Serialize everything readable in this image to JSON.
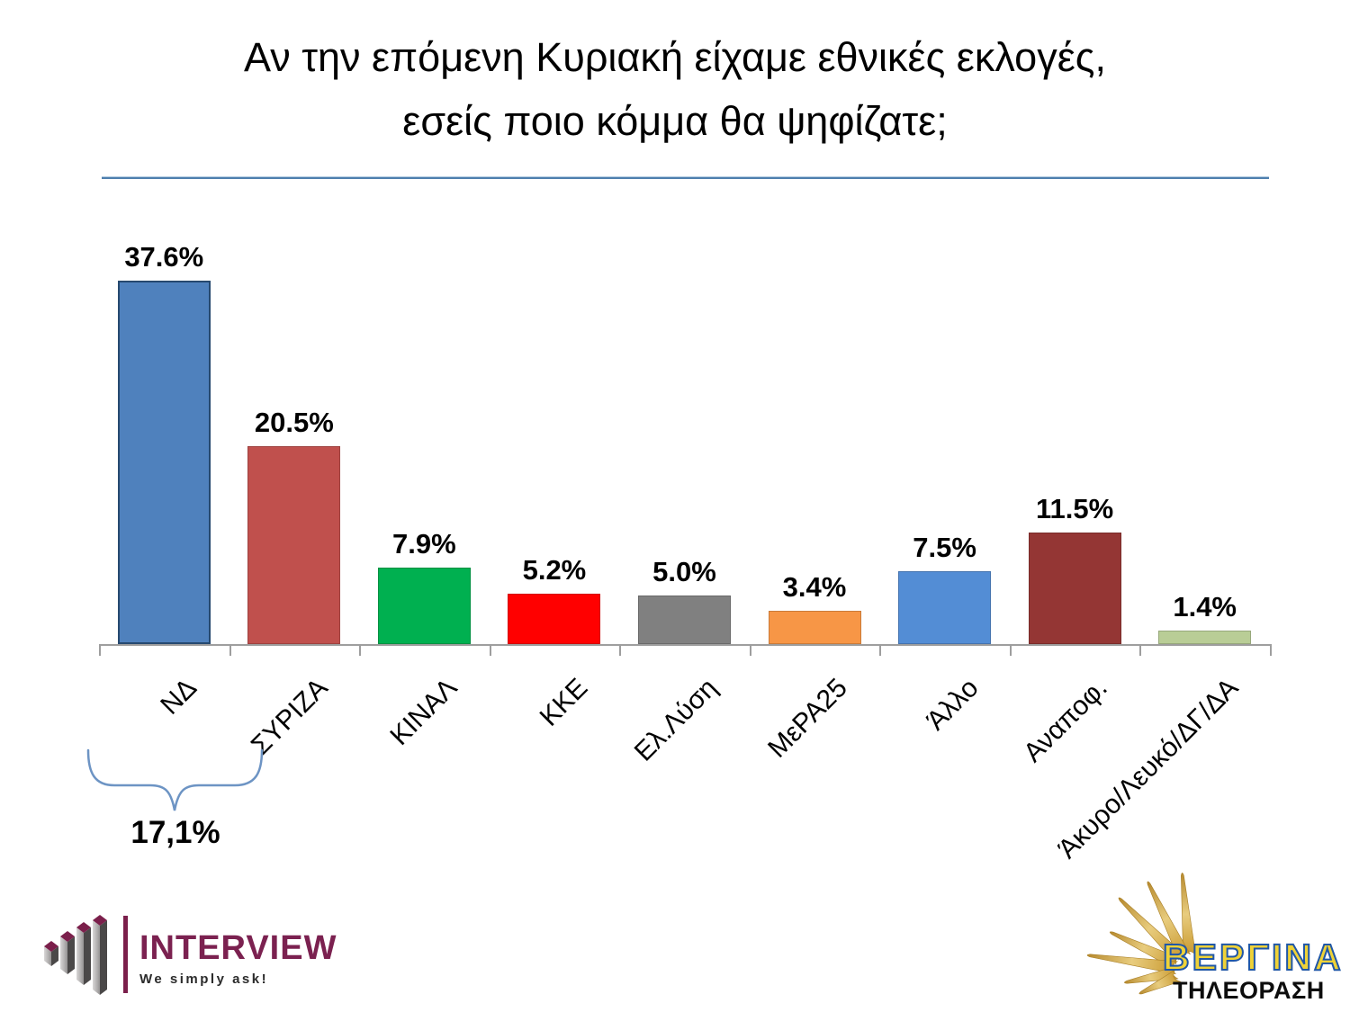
{
  "title": "Αν την επόμενη Κυριακή είχαμε εθνικές εκλογές, εσείς ποιο κόμμα θα ψηφίζατε;",
  "chart_data": {
    "type": "bar",
    "categories": [
      "ΝΔ",
      "ΣΥΡΙΖΑ",
      "ΚΙΝΑΛ",
      "ΚΚΕ",
      "Ελ.Λύση",
      "ΜεΡΑ25",
      "Άλλο",
      "Αναποφ.",
      "Άκυρο/Λευκό/ΔΓ/ΔΑ"
    ],
    "values": [
      37.6,
      20.5,
      7.9,
      5.2,
      5.0,
      3.4,
      7.5,
      11.5,
      1.4
    ],
    "value_labels": [
      "37.6%",
      "20.5%",
      "7.9%",
      "5.2%",
      "5.0%",
      "3.4%",
      "7.5%",
      "11.5%",
      "1.4%"
    ],
    "bar_colors": [
      "#4F81BD",
      "#C0504D",
      "#00B050",
      "#FF0000",
      "#808080",
      "#F79646",
      "#538DD5",
      "#943634",
      "#B9CD96"
    ],
    "bar_border_colors": [
      "#26496F",
      "rgba(0,0,0,0.18)",
      "rgba(0,0,0,0.18)",
      "rgba(0,0,0,0.18)",
      "rgba(0,0,0,0.18)",
      "rgba(0,0,0,0.18)",
      "rgba(0,0,0,0.18)",
      "rgba(0,0,0,0.18)",
      "rgba(0,0,0,0.18)"
    ],
    "ylim": [
      0,
      40
    ],
    "grid": false,
    "legend": "none",
    "annotation": {
      "text": "17,1%",
      "span_categories": [
        "ΝΔ",
        "ΣΥΡΙΖΑ"
      ]
    }
  },
  "footer": {
    "interview": {
      "name": "INTERVIEW",
      "tagline": "We simply ask!",
      "brand_color": "#7B2150"
    },
    "vergina": {
      "name": "ΒΕΡΓΙΝΑ",
      "subtitle": "ΤΗΛΕΟΡΑΣΗ",
      "text_fill": "#EFD237",
      "text_outline": "#2057A7",
      "sun_color": "#C9992F"
    }
  },
  "styles": {
    "divider_color": "#4E7FAE",
    "axis_color": "#9E9E9E",
    "brace_color": "#6D94C4"
  }
}
